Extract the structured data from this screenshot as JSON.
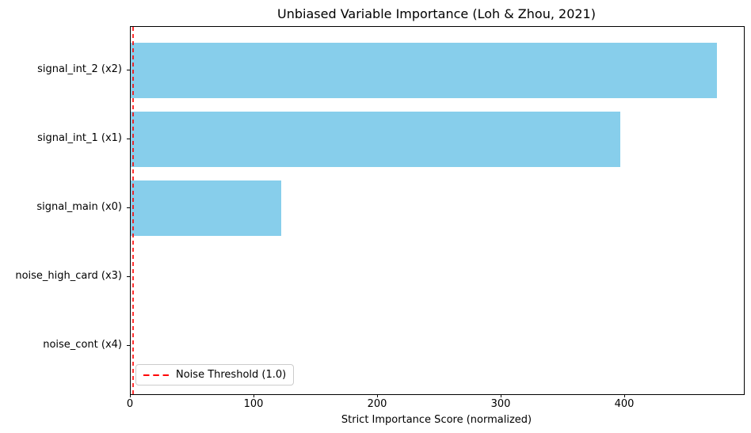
{
  "chart_data": {
    "type": "bar",
    "orientation": "horizontal",
    "title": "Unbiased Variable Importance (Loh & Zhou, 2021)",
    "xlabel": "Strict Importance Score (normalized)",
    "ylabel": "",
    "categories": [
      "signal_int_2 (x2)",
      "signal_int_1 (x1)",
      "signal_main (x0)",
      "noise_high_card (x3)",
      "noise_cont (x4)"
    ],
    "values": [
      474,
      396,
      122,
      0,
      0
    ],
    "xticks": [
      0,
      100,
      200,
      300,
      400
    ],
    "xlim": [
      0,
      496
    ],
    "grid": false,
    "bar_color": "#87CEEB",
    "threshold_line": {
      "x": 1.0,
      "color": "#ff0000",
      "style": "dashed"
    },
    "legend": {
      "position": "lower left",
      "entries": [
        {
          "label": "Noise Threshold (1.0)",
          "color": "#ff0000",
          "style": "dashed"
        }
      ]
    }
  }
}
